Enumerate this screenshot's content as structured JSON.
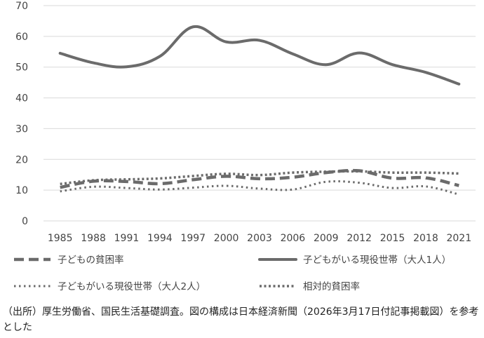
{
  "chart_data": {
    "type": "line",
    "title": "",
    "xlabel": "",
    "ylabel": "",
    "ylim": [
      0,
      70
    ],
    "yticks": [
      0,
      10,
      20,
      30,
      40,
      50,
      60,
      70
    ],
    "grid": "horizontal",
    "legend_placement": "bottom",
    "categories": [
      "1985",
      "1988",
      "1991",
      "1994",
      "1997",
      "2000",
      "2003",
      "2006",
      "2009",
      "2012",
      "2015",
      "2018",
      "2021"
    ],
    "series": [
      {
        "name": "子どもの貧困率",
        "style": "dashed",
        "color": "#6b6b6b",
        "values": [
          10.9,
          12.9,
          12.8,
          12.1,
          13.4,
          14.5,
          13.7,
          14.2,
          15.7,
          16.3,
          13.9,
          14.0,
          11.5
        ]
      },
      {
        "name": "子どもがいる現役世帯（大人1人）",
        "style": "solid",
        "color": "#6b6b6b",
        "values": [
          54.5,
          51.4,
          50.1,
          53.5,
          63.1,
          58.2,
          58.7,
          54.3,
          50.8,
          54.6,
          50.8,
          48.3,
          44.5
        ]
      },
      {
        "name": "子どもがいる現役世帯（大人2人）",
        "style": "dotted",
        "color": "#6b6b6b",
        "values": [
          9.6,
          11.1,
          10.7,
          10.2,
          10.8,
          11.4,
          10.5,
          10.2,
          12.7,
          12.4,
          10.7,
          11.2,
          8.6
        ]
      },
      {
        "name": "相対的貧困率",
        "style": "dotted-fine",
        "color": "#6b6b6b",
        "values": [
          12.0,
          13.2,
          13.5,
          13.8,
          14.6,
          15.3,
          14.9,
          15.7,
          16.0,
          16.1,
          15.7,
          15.7,
          15.4
        ]
      }
    ]
  },
  "source_note": "（出所）厚生労働省、国民生活基礎調査。図の構成は日本経済新聞（2026年3月17日付記事掲載図）を参考とした"
}
